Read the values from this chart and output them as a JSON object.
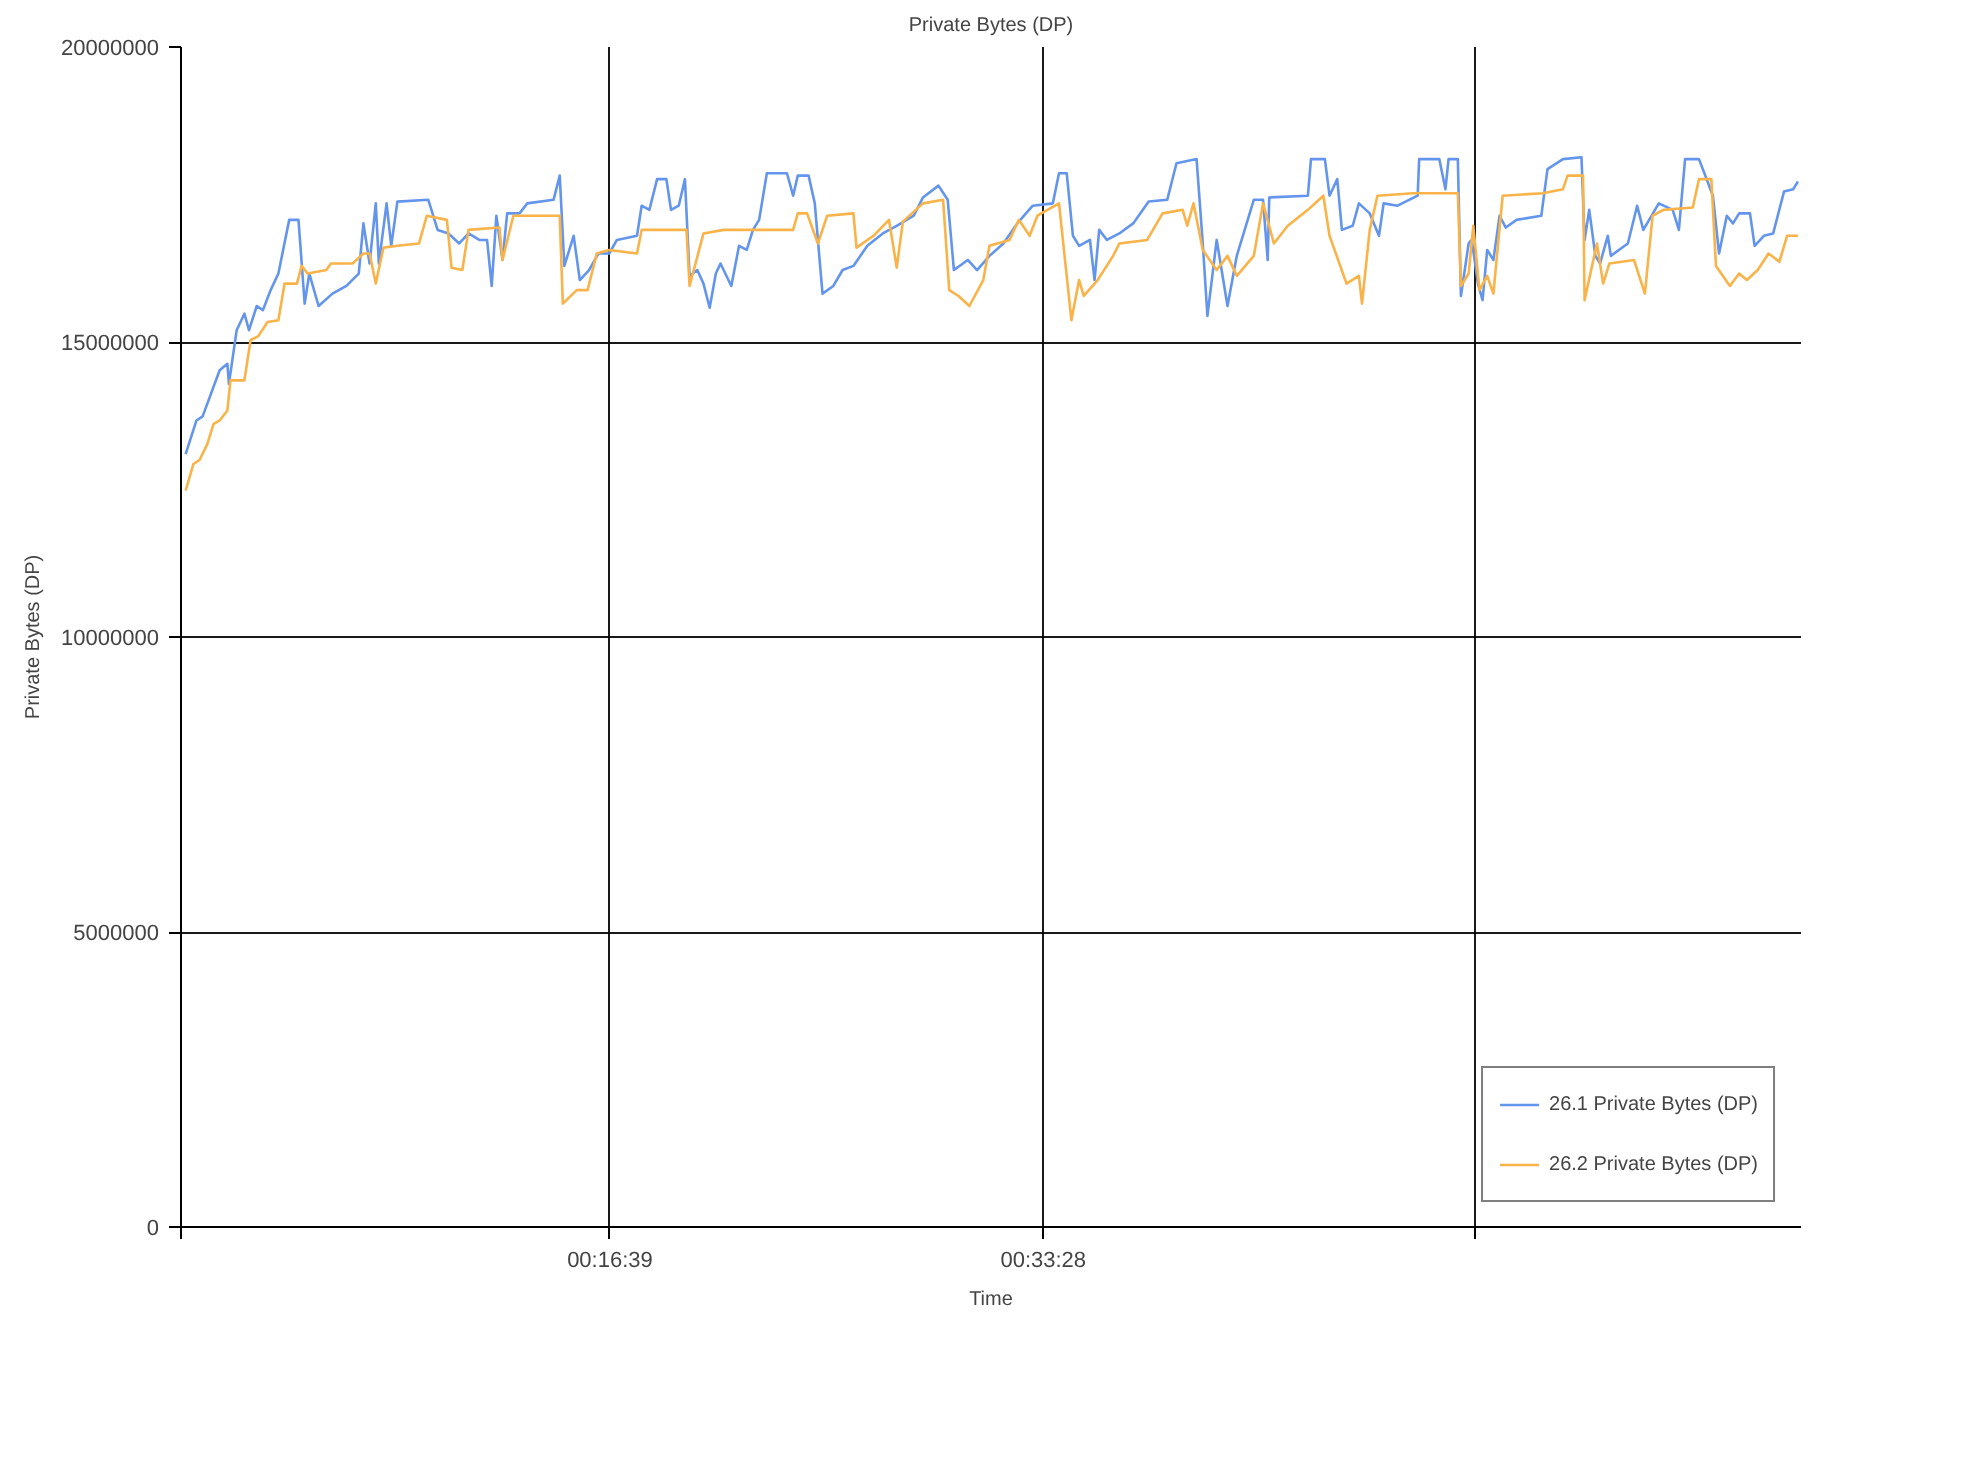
{
  "chart_data": {
    "type": "line",
    "title": "Private Bytes (DP)",
    "xlabel": "Time",
    "ylabel": "Private Bytes (DP)",
    "xlim": [
      0,
      1.048
    ],
    "ylim": [
      0,
      20000000
    ],
    "xticks": [
      {
        "value": 0,
        "label": null
      },
      {
        "value": 0.2775,
        "label": "00:16:39"
      },
      {
        "value": 0.5578,
        "label": "00:33:28"
      },
      {
        "value": 0.8373,
        "label": null
      }
    ],
    "yticks": [
      0,
      5000000,
      10000000,
      15000000,
      20000000
    ],
    "grid": true,
    "legend": "bottom right",
    "marker": "none",
    "line_style": "solid",
    "series": [
      {
        "name": "26.1 Private Bytes (DP)",
        "color": "#6495ed",
        "x": [
          0.003,
          0.01,
          0.014,
          0.025,
          0.03,
          0.031,
          0.036,
          0.041,
          0.044,
          0.049,
          0.053,
          0.058,
          0.063,
          0.07,
          0.076,
          0.08,
          0.083,
          0.089,
          0.098,
          0.107,
          0.115,
          0.118,
          0.122,
          0.126,
          0.128,
          0.133,
          0.136,
          0.14,
          0.16,
          0.166,
          0.173,
          0.18,
          0.186,
          0.193,
          0.198,
          0.201,
          0.204,
          0.208,
          0.211,
          0.219,
          0.224,
          0.241,
          0.245,
          0.248,
          0.254,
          0.258,
          0.264,
          0.27,
          0.277,
          0.282,
          0.295,
          0.298,
          0.303,
          0.308,
          0.314,
          0.317,
          0.322,
          0.326,
          0.329,
          0.334,
          0.338,
          0.342,
          0.346,
          0.349,
          0.356,
          0.361,
          0.366,
          0.37,
          0.374,
          0.379,
          0.392,
          0.396,
          0.399,
          0.406,
          0.41,
          0.415,
          0.422,
          0.428,
          0.435,
          0.444,
          0.454,
          0.463,
          0.474,
          0.48,
          0.49,
          0.496,
          0.5,
          0.509,
          0.515,
          0.523,
          0.532,
          0.541,
          0.551,
          0.564,
          0.568,
          0.573,
          0.577,
          0.581,
          0.588,
          0.591,
          0.594,
          0.599,
          0.607,
          0.616,
          0.626,
          0.638,
          0.644,
          0.657,
          0.661,
          0.664,
          0.67,
          0.677,
          0.683,
          0.694,
          0.7,
          0.703,
          0.704,
          0.729,
          0.731,
          0.74,
          0.743,
          0.748,
          0.751,
          0.758,
          0.762,
          0.769,
          0.775,
          0.778,
          0.787,
          0.8,
          0.801,
          0.814,
          0.818,
          0.82,
          0.826,
          0.828,
          0.833,
          0.835,
          0.839,
          0.842,
          0.845,
          0.849,
          0.853,
          0.857,
          0.864,
          0.88,
          0.884,
          0.894,
          0.906,
          0.908,
          0.911,
          0.915,
          0.918,
          0.923,
          0.925,
          0.936,
          0.942,
          0.946,
          0.956,
          0.965,
          0.969,
          0.973,
          0.982,
          0.987,
          0.991,
          0.995,
          1.0,
          1.004,
          1.008,
          1.015,
          1.018,
          1.024,
          1.03,
          1.037,
          1.043,
          1.046
        ],
        "values": [
          13100000,
          13670000,
          13740000,
          14520000,
          14630000,
          14290000,
          15200000,
          15480000,
          15200000,
          15610000,
          15540000,
          15880000,
          16160000,
          17070000,
          17070000,
          15650000,
          16160000,
          15610000,
          15820000,
          15950000,
          16160000,
          17010000,
          16330000,
          17350000,
          16330000,
          17350000,
          16630000,
          17380000,
          17410000,
          16900000,
          16840000,
          16670000,
          16840000,
          16730000,
          16730000,
          15950000,
          17140000,
          16390000,
          17180000,
          17180000,
          17350000,
          17410000,
          17820000,
          16290000,
          16800000,
          16050000,
          16220000,
          16500000,
          16500000,
          16730000,
          16800000,
          17310000,
          17240000,
          17760000,
          17760000,
          17240000,
          17310000,
          17760000,
          16120000,
          16220000,
          15990000,
          15580000,
          16160000,
          16330000,
          15950000,
          16630000,
          16560000,
          16900000,
          17070000,
          17860000,
          17860000,
          17480000,
          17820000,
          17820000,
          17350000,
          15820000,
          15950000,
          16220000,
          16290000,
          16630000,
          16840000,
          16970000,
          17140000,
          17450000,
          17650000,
          17410000,
          16220000,
          16390000,
          16220000,
          16460000,
          16670000,
          17010000,
          17310000,
          17350000,
          17860000,
          17860000,
          16800000,
          16630000,
          16730000,
          16050000,
          16900000,
          16730000,
          16840000,
          17010000,
          17380000,
          17410000,
          18030000,
          18100000,
          16670000,
          15440000,
          16730000,
          15610000,
          16460000,
          17410000,
          17410000,
          16390000,
          17450000,
          17480000,
          18100000,
          18100000,
          17480000,
          17760000,
          16900000,
          16970000,
          17350000,
          17180000,
          16800000,
          17350000,
          17310000,
          17480000,
          18100000,
          18100000,
          17590000,
          18100000,
          18100000,
          15780000,
          16670000,
          16730000,
          15990000,
          15710000,
          16560000,
          16390000,
          17140000,
          16940000,
          17070000,
          17140000,
          17930000,
          18100000,
          18130000,
          16730000,
          17240000,
          16460000,
          16330000,
          16800000,
          16460000,
          16670000,
          17310000,
          16900000,
          17350000,
          17240000,
          16900000,
          18100000,
          18100000,
          17760000,
          17480000,
          16500000,
          17140000,
          17010000,
          17180000,
          17180000,
          16630000,
          16800000,
          16840000,
          17550000,
          17590000,
          17720000
        ]
      },
      {
        "name": "26.2 Private Bytes (DP)",
        "color": "#f9b348",
        "x": [
          0.003,
          0.008,
          0.012,
          0.017,
          0.021,
          0.025,
          0.03,
          0.032,
          0.041,
          0.045,
          0.05,
          0.056,
          0.063,
          0.067,
          0.075,
          0.078,
          0.082,
          0.094,
          0.097,
          0.111,
          0.118,
          0.122,
          0.126,
          0.131,
          0.14,
          0.154,
          0.159,
          0.172,
          0.175,
          0.182,
          0.186,
          0.206,
          0.208,
          0.215,
          0.245,
          0.247,
          0.256,
          0.263,
          0.269,
          0.277,
          0.295,
          0.298,
          0.327,
          0.329,
          0.338,
          0.351,
          0.396,
          0.399,
          0.405,
          0.412,
          0.418,
          0.435,
          0.437,
          0.448,
          0.458,
          0.463,
          0.467,
          0.48,
          0.493,
          0.497,
          0.503,
          0.51,
          0.519,
          0.523,
          0.536,
          0.542,
          0.549,
          0.554,
          0.568,
          0.576,
          0.581,
          0.584,
          0.593,
          0.603,
          0.607,
          0.625,
          0.635,
          0.648,
          0.651,
          0.655,
          0.661,
          0.67,
          0.677,
          0.683,
          0.694,
          0.7,
          0.707,
          0.716,
          0.729,
          0.739,
          0.743,
          0.754,
          0.762,
          0.764,
          0.769,
          0.774,
          0.797,
          0.826,
          0.828,
          0.833,
          0.836,
          0.84,
          0.845,
          0.849,
          0.855,
          0.881,
          0.894,
          0.897,
          0.907,
          0.908,
          0.916,
          0.92,
          0.924,
          0.94,
          0.947,
          0.952,
          0.959,
          0.978,
          0.982,
          0.99,
          0.993,
          1.002,
          1.008,
          1.013,
          1.02,
          1.027,
          1.034,
          1.039,
          1.046
        ],
        "values": [
          12480000,
          12930000,
          13000000,
          13270000,
          13610000,
          13670000,
          13840000,
          14350000,
          14350000,
          15030000,
          15100000,
          15340000,
          15370000,
          15990000,
          15990000,
          16290000,
          16160000,
          16220000,
          16330000,
          16330000,
          16500000,
          16500000,
          15990000,
          16600000,
          16630000,
          16670000,
          17140000,
          17070000,
          16260000,
          16220000,
          16900000,
          16940000,
          16390000,
          17140000,
          17140000,
          15650000,
          15880000,
          15880000,
          16500000,
          16560000,
          16500000,
          16900000,
          16900000,
          15950000,
          16840000,
          16900000,
          16900000,
          17180000,
          17180000,
          16670000,
          17140000,
          17180000,
          16600000,
          16800000,
          17070000,
          16260000,
          17040000,
          17350000,
          17410000,
          15880000,
          15780000,
          15610000,
          16050000,
          16630000,
          16730000,
          17070000,
          16800000,
          17140000,
          17350000,
          15370000,
          16050000,
          15780000,
          16050000,
          16460000,
          16670000,
          16730000,
          17180000,
          17240000,
          16970000,
          17350000,
          16560000,
          16220000,
          16460000,
          16120000,
          16460000,
          17350000,
          16670000,
          16970000,
          17240000,
          17480000,
          16800000,
          15990000,
          16120000,
          15650000,
          16900000,
          17480000,
          17520000,
          17520000,
          15950000,
          16160000,
          16970000,
          15880000,
          16120000,
          15820000,
          17480000,
          17520000,
          17590000,
          17820000,
          17820000,
          15710000,
          16670000,
          15990000,
          16330000,
          16390000,
          15820000,
          17140000,
          17240000,
          17280000,
          17760000,
          17760000,
          16290000,
          15950000,
          16160000,
          16050000,
          16220000,
          16500000,
          16360000,
          16800000,
          16800000
        ]
      }
    ]
  }
}
